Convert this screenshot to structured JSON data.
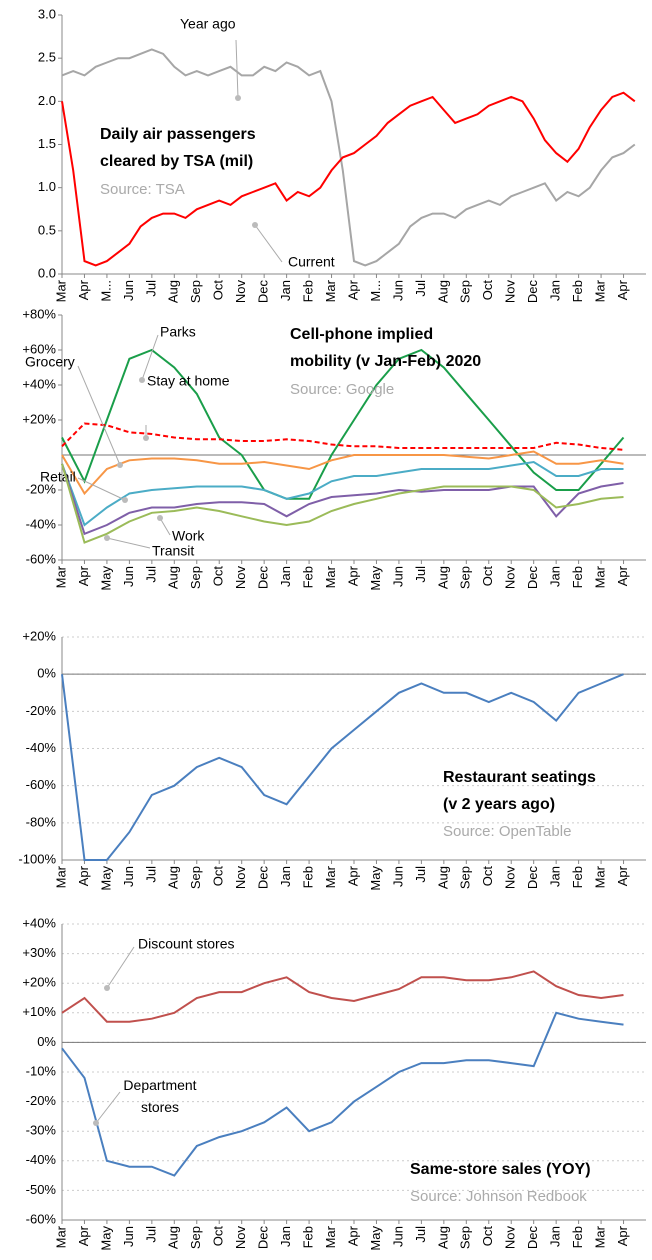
{
  "chart_data": [
    {
      "type": "line",
      "title": [
        "Daily air passengers",
        "cleared by TSA (mil)"
      ],
      "source": "Source: TSA",
      "x": [
        0,
        0.5,
        1,
        1.5,
        2,
        2.5,
        3,
        3.5,
        4,
        4.5,
        5,
        5.5,
        6,
        6.5,
        7,
        7.5,
        8,
        8.5,
        9,
        9.5,
        10,
        10.5,
        11,
        11.5,
        12,
        12.5,
        13,
        13.5,
        14,
        14.5,
        15,
        15.5,
        16,
        16.5,
        17,
        17.5,
        18,
        18.5,
        19,
        19.5,
        20,
        20.5,
        21,
        21.5,
        22,
        22.5,
        23,
        23.5,
        24,
        24.5,
        25,
        25.5
      ],
      "xlim": [
        0,
        26
      ],
      "xticks": [
        {
          "value": 0,
          "label": "Mar"
        },
        {
          "value": 1,
          "label": "Apr"
        },
        {
          "value": 2,
          "label": "M..."
        },
        {
          "value": 3,
          "label": "Jun"
        },
        {
          "value": 4,
          "label": "Jul"
        },
        {
          "value": 5,
          "label": "Aug"
        },
        {
          "value": 6,
          "label": "Sep"
        },
        {
          "value": 7,
          "label": "Oct"
        },
        {
          "value": 8,
          "label": "Nov"
        },
        {
          "value": 9,
          "label": "Dec"
        },
        {
          "value": 10,
          "label": "Jan"
        },
        {
          "value": 11,
          "label": "Feb"
        },
        {
          "value": 12,
          "label": "Mar"
        },
        {
          "value": 13,
          "label": "Apr"
        },
        {
          "value": 14,
          "label": "M..."
        },
        {
          "value": 15,
          "label": "Jun"
        },
        {
          "value": 16,
          "label": "Jul"
        },
        {
          "value": 17,
          "label": "Aug"
        },
        {
          "value": 18,
          "label": "Sep"
        },
        {
          "value": 19,
          "label": "Oct"
        },
        {
          "value": 20,
          "label": "Nov"
        },
        {
          "value": 21,
          "label": "Dec"
        },
        {
          "value": 22,
          "label": "Jan"
        },
        {
          "value": 23,
          "label": "Feb"
        },
        {
          "value": 24,
          "label": "Mar"
        },
        {
          "value": 25,
          "label": "Apr"
        }
      ],
      "ylim": [
        0,
        3
      ],
      "yticks": [
        {
          "value": 0,
          "label": "0.0"
        },
        {
          "value": 0.5,
          "label": "0.5"
        },
        {
          "value": 1,
          "label": "1.0"
        },
        {
          "value": 1.5,
          "label": "1.5"
        },
        {
          "value": 2,
          "label": "2.0"
        },
        {
          "value": 2.5,
          "label": "2.5"
        },
        {
          "value": 3,
          "label": "3.0"
        }
      ],
      "grid": false,
      "series": [
        {
          "name": "Year ago",
          "color": "#a6a6a6",
          "values": [
            2.3,
            2.35,
            2.3,
            2.4,
            2.45,
            2.5,
            2.5,
            2.55,
            2.6,
            2.55,
            2.4,
            2.3,
            2.35,
            2.3,
            2.35,
            2.4,
            2.3,
            2.3,
            2.4,
            2.35,
            2.45,
            2.4,
            2.3,
            2.35,
            2.0,
            1.2,
            0.15,
            0.1,
            0.15,
            0.25,
            0.35,
            0.55,
            0.65,
            0.7,
            0.7,
            0.65,
            0.75,
            0.8,
            0.85,
            0.8,
            0.9,
            0.95,
            1.0,
            1.05,
            0.85,
            0.95,
            0.9,
            1.0,
            1.2,
            1.35,
            1.4,
            1.5
          ]
        },
        {
          "name": "Current",
          "color": "#ff0000",
          "values": [
            2.0,
            1.2,
            0.15,
            0.1,
            0.15,
            0.25,
            0.35,
            0.55,
            0.65,
            0.7,
            0.7,
            0.65,
            0.75,
            0.8,
            0.85,
            0.8,
            0.9,
            0.95,
            1.0,
            1.05,
            0.85,
            0.95,
            0.9,
            1.0,
            1.2,
            1.35,
            1.4,
            1.5,
            1.6,
            1.75,
            1.85,
            1.95,
            2.0,
            2.05,
            1.9,
            1.75,
            1.8,
            1.85,
            1.95,
            2.0,
            2.05,
            2.0,
            1.8,
            1.55,
            1.4,
            1.3,
            1.45,
            1.7,
            1.9,
            2.05,
            2.1,
            2.0
          ]
        }
      ]
    },
    {
      "type": "line",
      "title": [
        "Cell-phone implied",
        "mobility (v Jan-Feb) 2020"
      ],
      "source": "Source: Google",
      "x": [
        0,
        1,
        2,
        3,
        4,
        5,
        6,
        7,
        8,
        9,
        10,
        11,
        12,
        13,
        14,
        15,
        16,
        17,
        18,
        19,
        20,
        21,
        22,
        23,
        24,
        25
      ],
      "xlim": [
        0,
        26
      ],
      "xticks": [
        {
          "value": 0,
          "label": "Mar"
        },
        {
          "value": 1,
          "label": "Apr"
        },
        {
          "value": 2,
          "label": "May"
        },
        {
          "value": 3,
          "label": "Jun"
        },
        {
          "value": 4,
          "label": "Jul"
        },
        {
          "value": 5,
          "label": "Aug"
        },
        {
          "value": 6,
          "label": "Sep"
        },
        {
          "value": 7,
          "label": "Oct"
        },
        {
          "value": 8,
          "label": "Nov"
        },
        {
          "value": 9,
          "label": "Dec"
        },
        {
          "value": 10,
          "label": "Jan"
        },
        {
          "value": 11,
          "label": "Feb"
        },
        {
          "value": 12,
          "label": "Mar"
        },
        {
          "value": 13,
          "label": "Apr"
        },
        {
          "value": 14,
          "label": "May"
        },
        {
          "value": 15,
          "label": "Jun"
        },
        {
          "value": 16,
          "label": "Jul"
        },
        {
          "value": 17,
          "label": "Aug"
        },
        {
          "value": 18,
          "label": "Sep"
        },
        {
          "value": 19,
          "label": "Oct"
        },
        {
          "value": 20,
          "label": "Nov"
        },
        {
          "value": 21,
          "label": "Dec"
        },
        {
          "value": 22,
          "label": "Jan"
        },
        {
          "value": 23,
          "label": "Feb"
        },
        {
          "value": 24,
          "label": "Mar"
        },
        {
          "value": 25,
          "label": "Apr"
        }
      ],
      "ylim": [
        -60,
        80
      ],
      "yticks": [
        {
          "value": -60,
          "label": "-60%"
        },
        {
          "value": -40,
          "label": "-40%"
        },
        {
          "value": -20,
          "label": "-20%"
        },
        {
          "value": 20,
          "label": "+20%"
        },
        {
          "value": 40,
          "label": "+40%"
        },
        {
          "value": 60,
          "label": "+60%"
        },
        {
          "value": 80,
          "label": "+80%"
        }
      ],
      "grid": false,
      "series": [
        {
          "name": "Parks",
          "color": "#1a9e4a",
          "values": [
            10,
            -15,
            20,
            55,
            60,
            50,
            35,
            10,
            0,
            -20,
            -25,
            -25,
            0,
            20,
            40,
            55,
            60,
            50,
            35,
            20,
            5,
            -10,
            -20,
            -20,
            -5,
            10
          ]
        },
        {
          "name": "Stay at home",
          "color": "#ff0000",
          "dashed": true,
          "values": [
            5,
            18,
            17,
            13,
            12,
            10,
            9,
            9,
            8,
            8,
            9,
            8,
            6,
            5,
            5,
            4,
            4,
            4,
            4,
            4,
            4,
            4,
            7,
            6,
            4,
            3
          ]
        },
        {
          "name": "Grocery",
          "color": "#f79646",
          "values": [
            0,
            -22,
            -8,
            -3,
            -2,
            -2,
            -3,
            -5,
            -5,
            -4,
            -6,
            -8,
            -3,
            0,
            0,
            0,
            0,
            0,
            -1,
            -2,
            0,
            2,
            -5,
            -5,
            -3,
            -5
          ]
        },
        {
          "name": "Retail",
          "color": "#4bacc6",
          "values": [
            -5,
            -40,
            -30,
            -22,
            -20,
            -19,
            -18,
            -18,
            -18,
            -20,
            -25,
            -22,
            -15,
            -12,
            -12,
            -10,
            -8,
            -8,
            -8,
            -8,
            -6,
            -4,
            -12,
            -12,
            -8,
            -8
          ]
        },
        {
          "name": "Work",
          "color": "#7f5fa8",
          "values": [
            -5,
            -45,
            -40,
            -33,
            -30,
            -30,
            -28,
            -27,
            -27,
            -28,
            -35,
            -28,
            -24,
            -23,
            -22,
            -20,
            -21,
            -20,
            -20,
            -20,
            -18,
            -18,
            -35,
            -22,
            -18,
            -16
          ]
        },
        {
          "name": "Transit",
          "color": "#9bbb59",
          "values": [
            -5,
            -50,
            -45,
            -38,
            -33,
            -32,
            -30,
            -32,
            -35,
            -38,
            -40,
            -38,
            -32,
            -28,
            -25,
            -22,
            -20,
            -18,
            -18,
            -18,
            -18,
            -20,
            -30,
            -28,
            -25,
            -24
          ]
        }
      ]
    },
    {
      "type": "line",
      "title": [
        "Restaurant seatings",
        "(v 2 years ago)"
      ],
      "source": "Source: OpenTable",
      "x": [
        0,
        1,
        2,
        3,
        4,
        5,
        6,
        7,
        8,
        9,
        10,
        11,
        12,
        13,
        14,
        15,
        16,
        17,
        18,
        19,
        20,
        21,
        22,
        23,
        24,
        25
      ],
      "xlim": [
        0,
        26
      ],
      "xticks": [
        {
          "value": 0,
          "label": "Mar"
        },
        {
          "value": 1,
          "label": "Apr"
        },
        {
          "value": 2,
          "label": "May"
        },
        {
          "value": 3,
          "label": "Jun"
        },
        {
          "value": 4,
          "label": "Jul"
        },
        {
          "value": 5,
          "label": "Aug"
        },
        {
          "value": 6,
          "label": "Sep"
        },
        {
          "value": 7,
          "label": "Oct"
        },
        {
          "value": 8,
          "label": "Nov"
        },
        {
          "value": 9,
          "label": "Dec"
        },
        {
          "value": 10,
          "label": "Jan"
        },
        {
          "value": 11,
          "label": "Feb"
        },
        {
          "value": 12,
          "label": "Mar"
        },
        {
          "value": 13,
          "label": "Apr"
        },
        {
          "value": 14,
          "label": "May"
        },
        {
          "value": 15,
          "label": "Jun"
        },
        {
          "value": 16,
          "label": "Jul"
        },
        {
          "value": 17,
          "label": "Aug"
        },
        {
          "value": 18,
          "label": "Sep"
        },
        {
          "value": 19,
          "label": "Oct"
        },
        {
          "value": 20,
          "label": "Nov"
        },
        {
          "value": 21,
          "label": "Dec"
        },
        {
          "value": 22,
          "label": "Jan"
        },
        {
          "value": 23,
          "label": "Feb"
        },
        {
          "value": 24,
          "label": "Mar"
        },
        {
          "value": 25,
          "label": "Apr"
        }
      ],
      "ylim": [
        -100,
        20
      ],
      "yticks": [
        {
          "value": -100,
          "label": "-100%"
        },
        {
          "value": -80,
          "label": "-80%"
        },
        {
          "value": -60,
          "label": "-60%"
        },
        {
          "value": -40,
          "label": "-40%"
        },
        {
          "value": -20,
          "label": "-20%"
        },
        {
          "value": 0,
          "label": "0%"
        },
        {
          "value": 20,
          "label": "+20%"
        }
      ],
      "grid": true,
      "series": [
        {
          "name": "Restaurant seatings",
          "color": "#4a7fbf",
          "values": [
            0,
            -100,
            -100,
            -85,
            -65,
            -60,
            -50,
            -45,
            -50,
            -65,
            -70,
            -55,
            -40,
            -30,
            -20,
            -10,
            -5,
            -10,
            -10,
            -15,
            -10,
            -15,
            -25,
            -10,
            -5,
            0
          ]
        }
      ]
    },
    {
      "type": "line",
      "title": [
        "Same-store sales (YOY)"
      ],
      "source": "Source: Johnson Redbook",
      "x": [
        0,
        1,
        2,
        3,
        4,
        5,
        6,
        7,
        8,
        9,
        10,
        11,
        12,
        13,
        14,
        15,
        16,
        17,
        18,
        19,
        20,
        21,
        22,
        23,
        24,
        25
      ],
      "xlim": [
        0,
        26
      ],
      "xticks": [
        {
          "value": 0,
          "label": "Mar"
        },
        {
          "value": 1,
          "label": "Apr"
        },
        {
          "value": 2,
          "label": "May"
        },
        {
          "value": 3,
          "label": "Jun"
        },
        {
          "value": 4,
          "label": "Jul"
        },
        {
          "value": 5,
          "label": "Aug"
        },
        {
          "value": 6,
          "label": "Sep"
        },
        {
          "value": 7,
          "label": "Oct"
        },
        {
          "value": 8,
          "label": "Nov"
        },
        {
          "value": 9,
          "label": "Dec"
        },
        {
          "value": 10,
          "label": "Jan"
        },
        {
          "value": 11,
          "label": "Feb"
        },
        {
          "value": 12,
          "label": "Mar"
        },
        {
          "value": 13,
          "label": "Apr"
        },
        {
          "value": 14,
          "label": "May"
        },
        {
          "value": 15,
          "label": "Jun"
        },
        {
          "value": 16,
          "label": "Jul"
        },
        {
          "value": 17,
          "label": "Aug"
        },
        {
          "value": 18,
          "label": "Sep"
        },
        {
          "value": 19,
          "label": "Oct"
        },
        {
          "value": 20,
          "label": "Nov"
        },
        {
          "value": 21,
          "label": "Dec"
        },
        {
          "value": 22,
          "label": "Jan"
        },
        {
          "value": 23,
          "label": "Feb"
        },
        {
          "value": 24,
          "label": "Mar"
        },
        {
          "value": 25,
          "label": "Apr"
        }
      ],
      "ylim": [
        -60,
        40
      ],
      "yticks": [
        {
          "value": -60,
          "label": "-60%"
        },
        {
          "value": -50,
          "label": "-50%"
        },
        {
          "value": -40,
          "label": "-40%"
        },
        {
          "value": -30,
          "label": "-30%"
        },
        {
          "value": -20,
          "label": "-20%"
        },
        {
          "value": -10,
          "label": "-10%"
        },
        {
          "value": 0,
          "label": "0%"
        },
        {
          "value": 10,
          "label": "+10%"
        },
        {
          "value": 20,
          "label": "+20%"
        },
        {
          "value": 30,
          "label": "+30%"
        },
        {
          "value": 40,
          "label": "+40%"
        }
      ],
      "grid": true,
      "series": [
        {
          "name": "Discount stores",
          "color": "#c0504d",
          "values": [
            10,
            15,
            7,
            7,
            8,
            10,
            15,
            17,
            17,
            20,
            22,
            17,
            15,
            14,
            16,
            18,
            22,
            22,
            21,
            21,
            22,
            24,
            19,
            16,
            15,
            16
          ]
        },
        {
          "name": "Department stores",
          "color": "#4a7fbf",
          "values": [
            -2,
            -12,
            -40,
            -42,
            -42,
            -45,
            -35,
            -32,
            -30,
            -27,
            -22,
            -30,
            -27,
            -20,
            -15,
            -10,
            -7,
            -7,
            -6,
            -6,
            -7,
            -8,
            10,
            8,
            7,
            6
          ]
        }
      ]
    }
  ]
}
